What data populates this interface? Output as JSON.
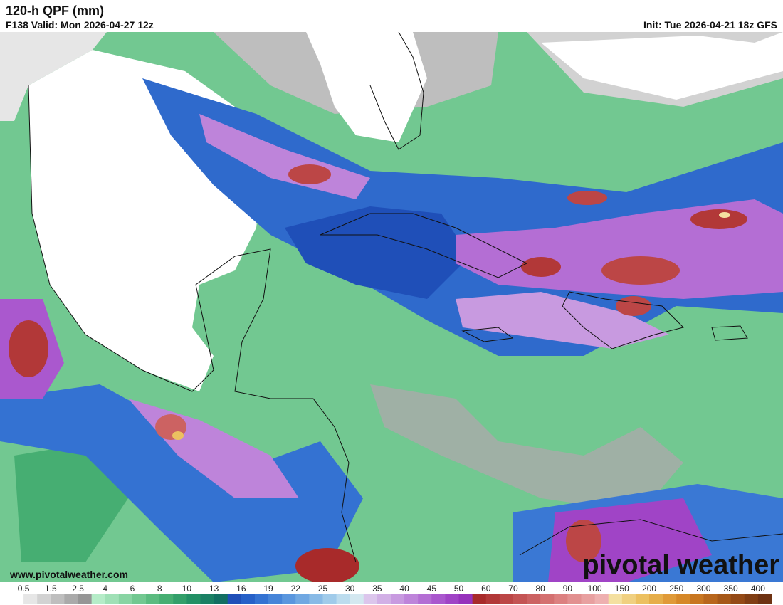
{
  "header": {
    "title": "120-h QPF (mm)",
    "valid": "F138 Valid: Mon 2026-04-27 12z",
    "init": "Init: Tue 2026-04-21 18z GFS"
  },
  "watermark": {
    "url": "www.pivotalweather.com",
    "brand": "pivotal weather"
  },
  "colorbar": {
    "ticks": [
      0.5,
      1.5,
      2.5,
      4,
      6,
      8,
      10,
      13,
      16,
      19,
      22,
      25,
      30,
      35,
      40,
      45,
      50,
      60,
      70,
      80,
      90,
      100,
      150,
      200,
      250,
      300,
      350,
      400
    ],
    "colors": [
      "#ffffff",
      "#e6e6e6",
      "#d2d2d2",
      "#bebebe",
      "#aaaaaa",
      "#969696",
      "#b5ecc8",
      "#9fe0b6",
      "#88d4a3",
      "#72c891",
      "#5bbb80",
      "#46ae72",
      "#339f6a",
      "#239065",
      "#1a8064",
      "#126f62",
      "#1f4fb8",
      "#2660c8",
      "#3472d2",
      "#4684d8",
      "#5a96de",
      "#70a8e2",
      "#88bae6",
      "#a0cbea",
      "#bcdcee",
      "#d4e8f0",
      "#dcc6ec",
      "#d2b0e6",
      "#c89ae0",
      "#be84da",
      "#b46ed4",
      "#aa58ce",
      "#a044c6",
      "#9632bc",
      "#a82a2a",
      "#b23838",
      "#bc4646",
      "#c45454",
      "#cc6262",
      "#d47070",
      "#dc8080",
      "#e29090",
      "#e8a0a0",
      "#eeb0b0",
      "#f4e0a0",
      "#f0d080",
      "#ecc060",
      "#e6ae4a",
      "#e09a38",
      "#d68828",
      "#c87620",
      "#b8661c",
      "#a65818",
      "#944a16",
      "#803e14",
      "#6e3212"
    ]
  }
}
